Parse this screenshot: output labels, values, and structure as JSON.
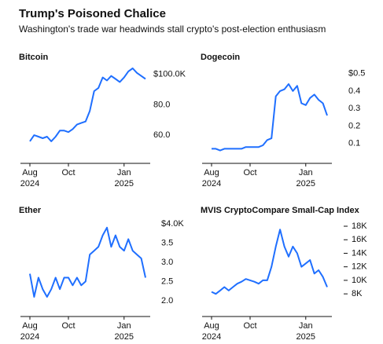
{
  "title": "Trump's Poisoned Chalice",
  "subtitle": "Washington's trade war headwinds stall crypto's post-election enthusiasm",
  "chart_data": [
    {
      "type": "line",
      "title": "Bitcoin",
      "color": "#1f6fff",
      "categories": [
        "Aug 2024",
        null,
        null,
        null,
        null,
        null,
        null,
        null,
        null,
        "Oct",
        null,
        null,
        null,
        null,
        null,
        null,
        null,
        null,
        null,
        null,
        null,
        null,
        "Jan 2025",
        null,
        null,
        null,
        null,
        null
      ],
      "values": [
        56,
        60,
        59,
        58,
        59,
        56,
        59,
        63,
        63,
        62,
        64,
        67,
        68,
        69,
        76,
        89,
        91,
        98,
        96,
        99,
        97,
        95,
        98,
        102,
        104,
        101,
        99,
        97
      ],
      "ylim": [
        43,
        104
      ],
      "yticks": [
        {
          "value": 60,
          "label": "60.0"
        },
        {
          "value": 80,
          "label": "80.0"
        },
        {
          "value": 100,
          "label": "$100.0K"
        }
      ],
      "ytick_marks": false
    },
    {
      "type": "line",
      "title": "Dogecoin",
      "color": "#1f6fff",
      "categories": [
        "Aug 2024",
        null,
        null,
        null,
        null,
        null,
        null,
        null,
        null,
        "Oct",
        null,
        null,
        null,
        null,
        null,
        null,
        null,
        null,
        null,
        null,
        null,
        null,
        "Jan 2025",
        null,
        null,
        null,
        null,
        null
      ],
      "values": [
        0.07,
        0.07,
        0.06,
        0.07,
        0.07,
        0.07,
        0.07,
        0.07,
        0.08,
        0.08,
        0.08,
        0.08,
        0.09,
        0.12,
        0.13,
        0.37,
        0.4,
        0.41,
        0.44,
        0.4,
        0.43,
        0.33,
        0.32,
        0.36,
        0.38,
        0.35,
        0.33,
        0.26
      ],
      "ylim": [
        0,
        0.53
      ],
      "yticks": [
        0.1,
        0.2,
        0.3,
        0.4,
        {
          "value": 0.5,
          "label": "$0.5"
        }
      ],
      "ytick_marks": false
    },
    {
      "type": "line",
      "title": "Ether",
      "color": "#1f6fff",
      "categories": [
        "Aug 2024",
        null,
        null,
        null,
        null,
        null,
        null,
        null,
        null,
        "Oct",
        null,
        null,
        null,
        null,
        null,
        null,
        null,
        null,
        null,
        null,
        null,
        null,
        "Jan 2025",
        null,
        null,
        null,
        null,
        null
      ],
      "values": [
        2.7,
        2.1,
        2.6,
        2.3,
        2.1,
        2.3,
        2.6,
        2.3,
        2.6,
        2.6,
        2.4,
        2.6,
        2.4,
        2.5,
        3.2,
        3.3,
        3.4,
        3.7,
        3.9,
        3.4,
        3.7,
        3.4,
        3.3,
        3.6,
        3.3,
        3.2,
        3.1,
        2.6
      ],
      "ylim": [
        1.65,
        4.06
      ],
      "yticks": [
        {
          "value": 2,
          "label": "2.0"
        },
        2.5,
        {
          "value": 3,
          "label": "3.0"
        },
        3.5,
        {
          "value": 4,
          "label": "$4.0K"
        }
      ],
      "ytick_marks": false
    },
    {
      "type": "line",
      "title": "MVIS CryptoCompare Small-Cap Index",
      "color": "#1f6fff",
      "categories": [
        "Aug 2024",
        null,
        null,
        null,
        null,
        null,
        null,
        null,
        null,
        "Oct",
        null,
        null,
        null,
        null,
        null,
        null,
        null,
        null,
        null,
        null,
        null,
        null,
        "Jan 2025",
        null,
        null,
        null,
        null,
        null
      ],
      "values": [
        8.3,
        8,
        8.5,
        9,
        8.5,
        9,
        9.5,
        9.8,
        10.2,
        10,
        9.8,
        9.5,
        10,
        10,
        12,
        15,
        17.5,
        15,
        13.5,
        15,
        14,
        12,
        12.5,
        13,
        11,
        11.5,
        10.5,
        9
      ],
      "ylim": [
        5,
        18.7
      ],
      "yticks": [
        {
          "value": 8,
          "label": "8K"
        },
        {
          "value": 10,
          "label": "10K"
        },
        {
          "value": 12,
          "label": "12K"
        },
        {
          "value": 14,
          "label": "14K"
        },
        {
          "value": 16,
          "label": "16K"
        },
        {
          "value": 18,
          "label": "18K"
        }
      ],
      "ytick_marks": true
    }
  ]
}
